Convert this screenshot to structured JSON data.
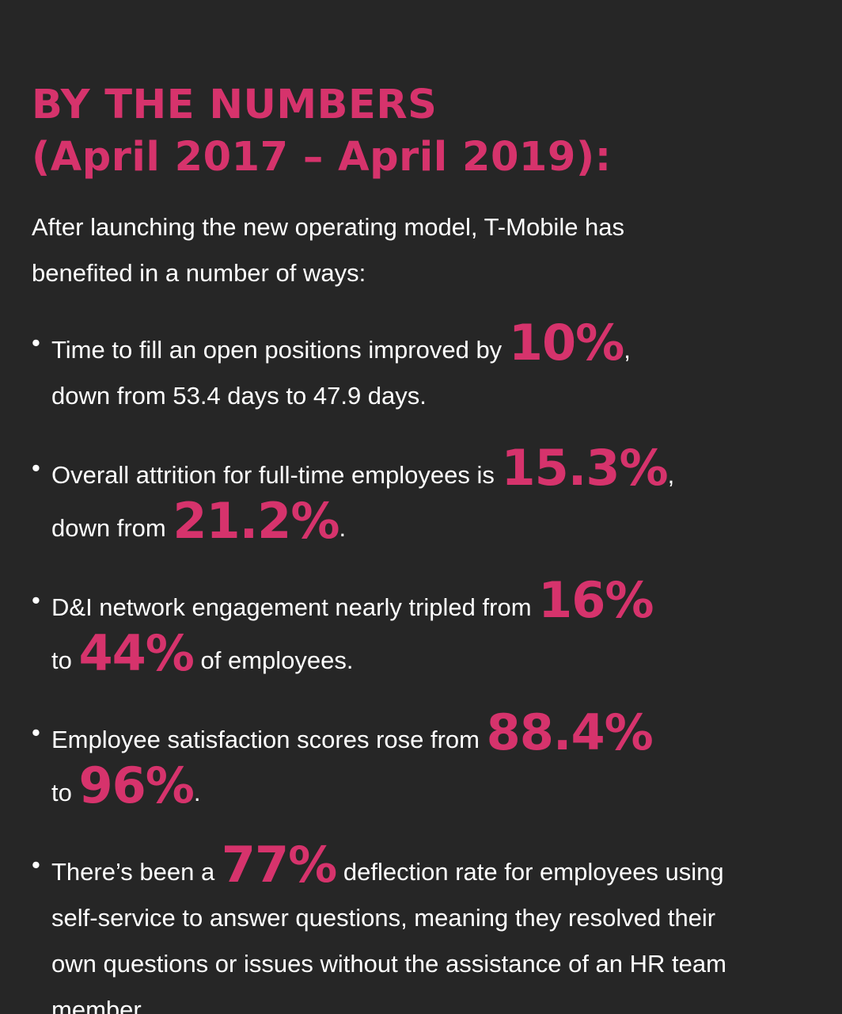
{
  "heading": {
    "line1": "BY THE NUMBERS",
    "line2": "(April 2017 – April 2019):"
  },
  "intro": {
    "line1": "After launching the new operating model, T-Mobile has",
    "line2": "benefited in a number of ways:"
  },
  "bullet_glyph": "•",
  "accent_color": "#d6336c",
  "background_color": "#262626",
  "bullets": [
    {
      "t1": "Time to fill an open positions improved by ",
      "n1": "10%",
      "t2": ",",
      "t3": "down from 53.4 days to 47.9 days."
    },
    {
      "t1": "Overall attrition for full-time employees is ",
      "n1": "15.3%",
      "t2": ",",
      "t3": "down from ",
      "n2": "21.2%",
      "t4": "."
    },
    {
      "t1": "D&I network engagement nearly tripled from ",
      "n1": "16%",
      "t3": "to ",
      "n2": "44%",
      "t4": " of employees."
    },
    {
      "t1": "Employee satisfaction scores rose from ",
      "n1": "88.4%",
      "t3": "to ",
      "n2": "96%",
      "t4": "."
    },
    {
      "t1": "There’s been a ",
      "n1": "77%",
      "t2": " deflection rate for employees using",
      "l2": "self-service to answer questions, meaning they resolved their",
      "l3": "own questions or issues without the assistance of an HR team",
      "l4": "member."
    }
  ]
}
